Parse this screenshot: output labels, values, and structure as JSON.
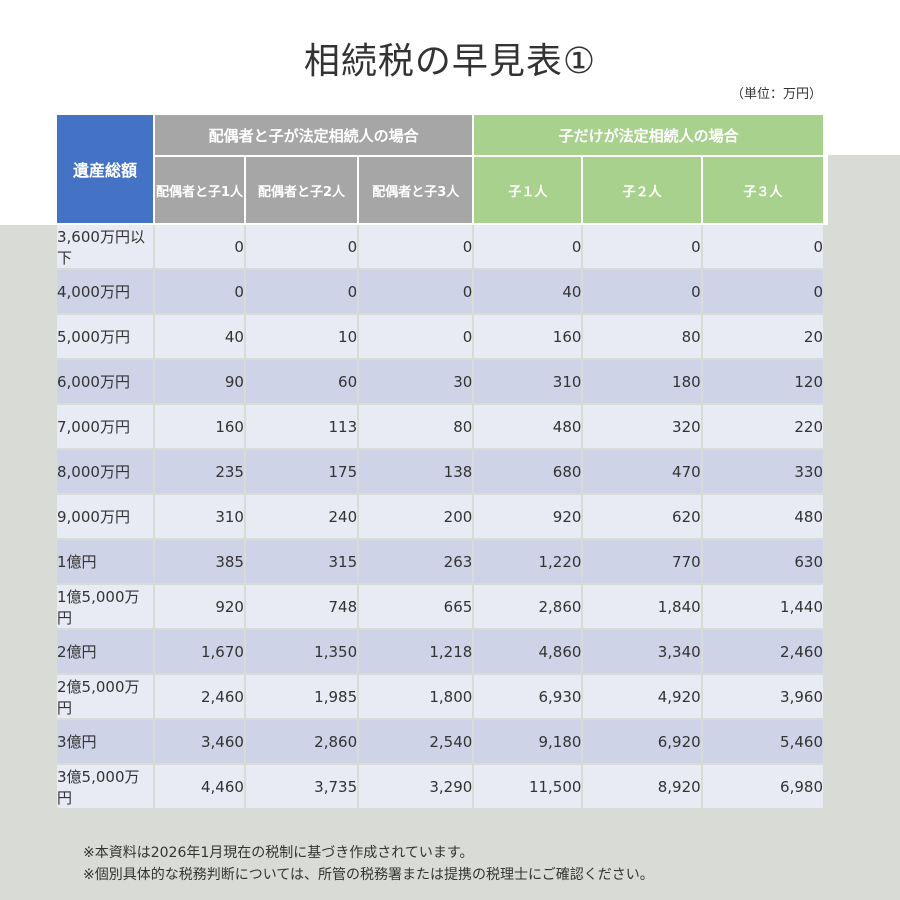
{
  "title": "相続税の早見表①",
  "unit": "（単位：万円）",
  "headers": {
    "total": "遺産総額",
    "group_spouse": "配偶者と子が法定相続人の場合",
    "group_children": "子だけが法定相続人の場合",
    "sub": [
      "配偶者と子1人",
      "配偶者と子2人",
      "配偶者と子3人",
      "子１人",
      "子２人",
      "子３人"
    ]
  },
  "rows": [
    {
      "label": "3,600万円以下",
      "values": [
        "0",
        "0",
        "0",
        "0",
        "0",
        "0"
      ]
    },
    {
      "label": "4,000万円",
      "values": [
        "0",
        "0",
        "0",
        "40",
        "0",
        "0"
      ]
    },
    {
      "label": "5,000万円",
      "values": [
        "40",
        "10",
        "0",
        "160",
        "80",
        "20"
      ]
    },
    {
      "label": "6,000万円",
      "values": [
        "90",
        "60",
        "30",
        "310",
        "180",
        "120"
      ]
    },
    {
      "label": "7,000万円",
      "values": [
        "160",
        "113",
        "80",
        "480",
        "320",
        "220"
      ]
    },
    {
      "label": "8,000万円",
      "values": [
        "235",
        "175",
        "138",
        "680",
        "470",
        "330"
      ]
    },
    {
      "label": "9,000万円",
      "values": [
        "310",
        "240",
        "200",
        "920",
        "620",
        "480"
      ]
    },
    {
      "label": "1億円",
      "values": [
        "385",
        "315",
        "263",
        "1,220",
        "770",
        "630"
      ]
    },
    {
      "label": "1億5,000万円",
      "values": [
        "920",
        "748",
        "665",
        "2,860",
        "1,840",
        "1,440"
      ]
    },
    {
      "label": "2億円",
      "values": [
        "1,670",
        "1,350",
        "1,218",
        "4,860",
        "3,340",
        "2,460"
      ]
    },
    {
      "label": "2億5,000万円",
      "values": [
        "2,460",
        "1,985",
        "1,800",
        "6,930",
        "4,920",
        "3,960"
      ]
    },
    {
      "label": "3億円",
      "values": [
        "3,460",
        "2,860",
        "2,540",
        "9,180",
        "6,920",
        "5,460"
      ]
    },
    {
      "label": "3億5,000万円",
      "values": [
        "4,460",
        "3,735",
        "3,290",
        "11,500",
        "8,920",
        "6,980"
      ]
    }
  ],
  "notes": [
    "※本資料は2026年1月現在の税制に基づき作成されています。",
    "※個別具体的な税務判断については、所管の税務署または提携の税理士にご確認ください。"
  ],
  "colors": {
    "total_header": "#4472c4",
    "spouse_header": "#a6a6a6",
    "children_header": "#a9d18e",
    "row_light": "#e9ebf4",
    "row_dark": "#ced3e8",
    "background_band": "#d9dcd6"
  }
}
